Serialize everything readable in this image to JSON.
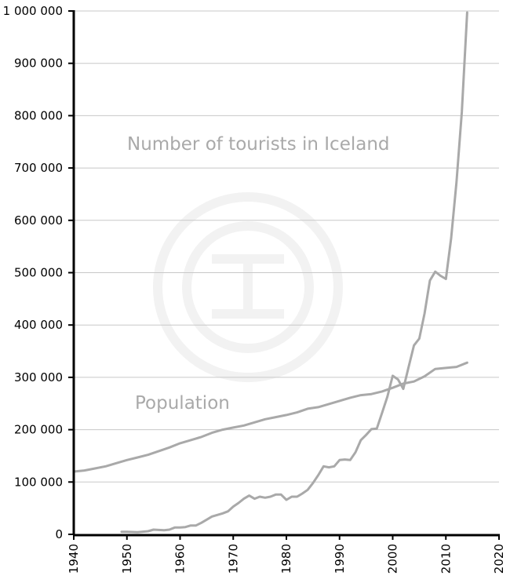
{
  "chart_data": {
    "type": "line",
    "title": "",
    "xlabel": "",
    "ylabel": "",
    "xlim": [
      1940,
      2020
    ],
    "ylim": [
      0,
      1000000
    ],
    "x_ticks": [
      "1940",
      "1950",
      "1960",
      "1970",
      "1980",
      "1990",
      "2000",
      "2010",
      "2020"
    ],
    "y_ticks": [
      "0",
      "100 000",
      "200 000",
      "300 000",
      "400 000",
      "500 000",
      "600 000",
      "700 000",
      "800 000",
      "900 000",
      "1 000 000"
    ],
    "grid": true,
    "series_color": "#a9a9a9",
    "series": [
      {
        "name": "Number of tourists in Iceland",
        "x": [
          1949,
          1950,
          1952,
          1954,
          1955,
          1957,
          1958,
          1959,
          1960,
          1961,
          1962,
          1963,
          1964,
          1965,
          1966,
          1967,
          1968,
          1969,
          1970,
          1971,
          1972,
          1973,
          1974,
          1975,
          1976,
          1977,
          1978,
          1979,
          1980,
          1981,
          1982,
          1983,
          1984,
          1985,
          1986,
          1987,
          1988,
          1989,
          1990,
          1991,
          1992,
          1993,
          1994,
          1995,
          1996,
          1997,
          1998,
          1999,
          2000,
          2001,
          2002,
          2003,
          2004,
          2005,
          2006,
          2007,
          2008,
          2009,
          2010,
          2011,
          2012,
          2013,
          2014
        ],
        "values": [
          5000,
          5000,
          4000,
          6000,
          9000,
          8000,
          9000,
          13000,
          13000,
          14000,
          17000,
          17000,
          22000,
          28000,
          34000,
          37000,
          40000,
          44000,
          53000,
          60000,
          68000,
          74000,
          68000,
          72000,
          70000,
          72000,
          76000,
          76000,
          66000,
          72000,
          72000,
          78000,
          85000,
          98000,
          113000,
          130000,
          128000,
          130000,
          142000,
          143000,
          142000,
          157000,
          180000,
          190000,
          201000,
          202000,
          232000,
          263000,
          303000,
          296000,
          278000,
          320000,
          361000,
          374000,
          422000,
          485000,
          502000,
          494000,
          488000,
          566000,
          673000,
          807000,
          997000
        ]
      },
      {
        "name": "Population",
        "x": [
          1940,
          1942,
          1944,
          1946,
          1948,
          1950,
          1952,
          1954,
          1956,
          1958,
          1960,
          1962,
          1964,
          1966,
          1968,
          1970,
          1972,
          1974,
          1976,
          1978,
          1980,
          1982,
          1984,
          1986,
          1988,
          1990,
          1992,
          1994,
          1996,
          1998,
          2000,
          2002,
          2004,
          2006,
          2008,
          2010,
          2012,
          2014
        ],
        "values": [
          120000,
          122000,
          126000,
          130000,
          136000,
          142000,
          147000,
          152000,
          159000,
          166000,
          174000,
          180000,
          186000,
          194000,
          200000,
          204000,
          208000,
          214000,
          220000,
          224000,
          228000,
          233000,
          240000,
          243000,
          249000,
          255000,
          261000,
          266000,
          268000,
          273000,
          280000,
          288000,
          292000,
          302000,
          316000,
          318000,
          320000,
          328000
        ]
      }
    ]
  }
}
